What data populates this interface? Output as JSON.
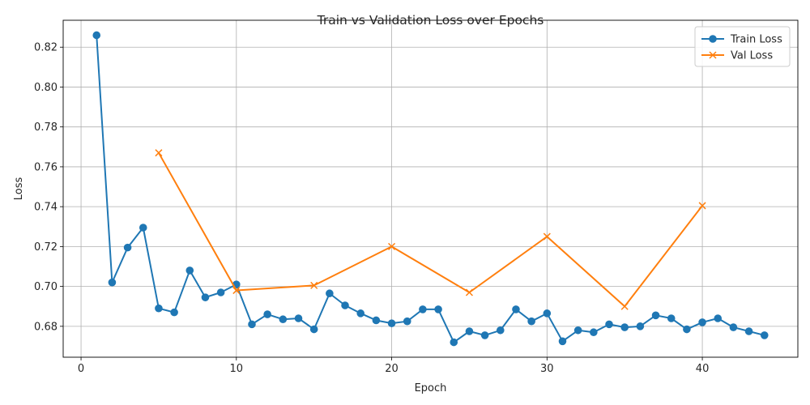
{
  "chart_data": {
    "type": "line",
    "title": "Train vs Validation Loss over Epochs",
    "xlabel": "Epoch",
    "ylabel": "Loss",
    "xlim": [
      -1.15,
      46.15
    ],
    "ylim": [
      0.6645,
      0.8335
    ],
    "xticks": [
      0,
      10,
      20,
      30,
      40
    ],
    "yticks": [
      0.68,
      0.7,
      0.72,
      0.74,
      0.76,
      0.78,
      0.8,
      0.82
    ],
    "grid": true,
    "legend_position": "top-right",
    "series": [
      {
        "name": "Train Loss",
        "color": "#1f77b4",
        "marker": "circle",
        "x": [
          1,
          2,
          3,
          4,
          5,
          6,
          7,
          8,
          9,
          10,
          11,
          12,
          13,
          14,
          15,
          16,
          17,
          18,
          19,
          20,
          21,
          22,
          23,
          24,
          25,
          26,
          27,
          28,
          29,
          30,
          31,
          32,
          33,
          34,
          35,
          36,
          37,
          38,
          39,
          40,
          41,
          42,
          43,
          44
        ],
        "values": [
          0.826,
          0.702,
          0.7195,
          0.7295,
          0.689,
          0.687,
          0.708,
          0.6945,
          0.697,
          0.701,
          0.681,
          0.686,
          0.6835,
          0.684,
          0.6785,
          0.6965,
          0.6905,
          0.6865,
          0.683,
          0.6815,
          0.6825,
          0.6885,
          0.6885,
          0.672,
          0.6775,
          0.6755,
          0.678,
          0.6885,
          0.6825,
          0.6865,
          0.6725,
          0.678,
          0.677,
          0.681,
          0.6795,
          0.68,
          0.6855,
          0.684,
          0.6785,
          0.682,
          0.684,
          0.6795,
          0.6775,
          0.6755
        ]
      },
      {
        "name": "Val Loss",
        "color": "#ff7f0e",
        "marker": "x",
        "x": [
          5,
          10,
          15,
          20,
          25,
          30,
          35,
          40
        ],
        "values": [
          0.767,
          0.698,
          0.7005,
          0.72,
          0.697,
          0.725,
          0.69,
          0.7405
        ]
      }
    ]
  }
}
